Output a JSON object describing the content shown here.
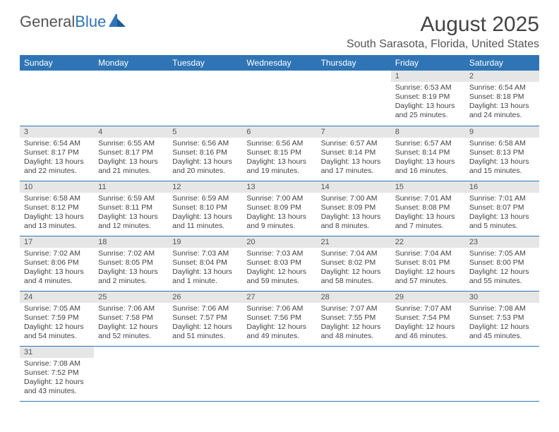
{
  "logo": {
    "text_a": "General",
    "text_b": "Blue"
  },
  "title": "August 2025",
  "location": "South Sarasota, Florida, United States",
  "colors": {
    "header_bg": "#2f75b5",
    "header_text": "#ffffff",
    "daynum_bg": "#e6e6e6",
    "border": "#2f75b5",
    "text": "#444444"
  },
  "weekdays": [
    "Sunday",
    "Monday",
    "Tuesday",
    "Wednesday",
    "Thursday",
    "Friday",
    "Saturday"
  ],
  "weeks": [
    [
      null,
      null,
      null,
      null,
      null,
      {
        "n": "1",
        "sr": "6:53 AM",
        "ss": "8:19 PM",
        "dl": "13 hours and 25 minutes."
      },
      {
        "n": "2",
        "sr": "6:54 AM",
        "ss": "8:18 PM",
        "dl": "13 hours and 24 minutes."
      }
    ],
    [
      {
        "n": "3",
        "sr": "6:54 AM",
        "ss": "8:17 PM",
        "dl": "13 hours and 22 minutes."
      },
      {
        "n": "4",
        "sr": "6:55 AM",
        "ss": "8:17 PM",
        "dl": "13 hours and 21 minutes."
      },
      {
        "n": "5",
        "sr": "6:56 AM",
        "ss": "8:16 PM",
        "dl": "13 hours and 20 minutes."
      },
      {
        "n": "6",
        "sr": "6:56 AM",
        "ss": "8:15 PM",
        "dl": "13 hours and 19 minutes."
      },
      {
        "n": "7",
        "sr": "6:57 AM",
        "ss": "8:14 PM",
        "dl": "13 hours and 17 minutes."
      },
      {
        "n": "8",
        "sr": "6:57 AM",
        "ss": "8:14 PM",
        "dl": "13 hours and 16 minutes."
      },
      {
        "n": "9",
        "sr": "6:58 AM",
        "ss": "8:13 PM",
        "dl": "13 hours and 15 minutes."
      }
    ],
    [
      {
        "n": "10",
        "sr": "6:58 AM",
        "ss": "8:12 PM",
        "dl": "13 hours and 13 minutes."
      },
      {
        "n": "11",
        "sr": "6:59 AM",
        "ss": "8:11 PM",
        "dl": "13 hours and 12 minutes."
      },
      {
        "n": "12",
        "sr": "6:59 AM",
        "ss": "8:10 PM",
        "dl": "13 hours and 11 minutes."
      },
      {
        "n": "13",
        "sr": "7:00 AM",
        "ss": "8:09 PM",
        "dl": "13 hours and 9 minutes."
      },
      {
        "n": "14",
        "sr": "7:00 AM",
        "ss": "8:09 PM",
        "dl": "13 hours and 8 minutes."
      },
      {
        "n": "15",
        "sr": "7:01 AM",
        "ss": "8:08 PM",
        "dl": "13 hours and 7 minutes."
      },
      {
        "n": "16",
        "sr": "7:01 AM",
        "ss": "8:07 PM",
        "dl": "13 hours and 5 minutes."
      }
    ],
    [
      {
        "n": "17",
        "sr": "7:02 AM",
        "ss": "8:06 PM",
        "dl": "13 hours and 4 minutes."
      },
      {
        "n": "18",
        "sr": "7:02 AM",
        "ss": "8:05 PM",
        "dl": "13 hours and 2 minutes."
      },
      {
        "n": "19",
        "sr": "7:03 AM",
        "ss": "8:04 PM",
        "dl": "13 hours and 1 minute."
      },
      {
        "n": "20",
        "sr": "7:03 AM",
        "ss": "8:03 PM",
        "dl": "12 hours and 59 minutes."
      },
      {
        "n": "21",
        "sr": "7:04 AM",
        "ss": "8:02 PM",
        "dl": "12 hours and 58 minutes."
      },
      {
        "n": "22",
        "sr": "7:04 AM",
        "ss": "8:01 PM",
        "dl": "12 hours and 57 minutes."
      },
      {
        "n": "23",
        "sr": "7:05 AM",
        "ss": "8:00 PM",
        "dl": "12 hours and 55 minutes."
      }
    ],
    [
      {
        "n": "24",
        "sr": "7:05 AM",
        "ss": "7:59 PM",
        "dl": "12 hours and 54 minutes."
      },
      {
        "n": "25",
        "sr": "7:06 AM",
        "ss": "7:58 PM",
        "dl": "12 hours and 52 minutes."
      },
      {
        "n": "26",
        "sr": "7:06 AM",
        "ss": "7:57 PM",
        "dl": "12 hours and 51 minutes."
      },
      {
        "n": "27",
        "sr": "7:06 AM",
        "ss": "7:56 PM",
        "dl": "12 hours and 49 minutes."
      },
      {
        "n": "28",
        "sr": "7:07 AM",
        "ss": "7:55 PM",
        "dl": "12 hours and 48 minutes."
      },
      {
        "n": "29",
        "sr": "7:07 AM",
        "ss": "7:54 PM",
        "dl": "12 hours and 46 minutes."
      },
      {
        "n": "30",
        "sr": "7:08 AM",
        "ss": "7:53 PM",
        "dl": "12 hours and 45 minutes."
      }
    ],
    [
      {
        "n": "31",
        "sr": "7:08 AM",
        "ss": "7:52 PM",
        "dl": "12 hours and 43 minutes."
      },
      null,
      null,
      null,
      null,
      null,
      null
    ]
  ],
  "labels": {
    "sunrise": "Sunrise:",
    "sunset": "Sunset:",
    "daylight": "Daylight:"
  }
}
